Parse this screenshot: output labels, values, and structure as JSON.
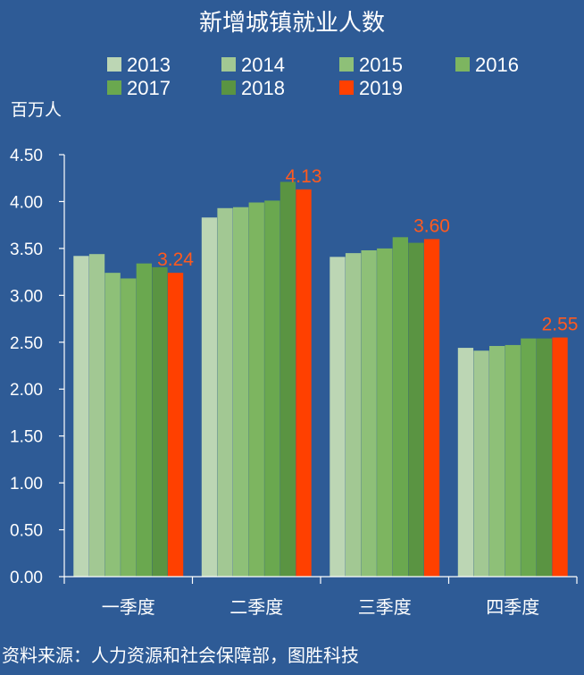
{
  "chart_data": {
    "type": "bar",
    "title": "新增城镇就业人数",
    "ylabel": "百万人",
    "ylim": [
      0,
      4.5
    ],
    "yticks": [
      "0.00",
      "0.50",
      "1.00",
      "1.50",
      "2.00",
      "2.50",
      "3.00",
      "3.50",
      "4.00",
      "4.50"
    ],
    "categories": [
      "一季度",
      "二季度",
      "三季度",
      "四季度"
    ],
    "series": [
      {
        "name": "2013",
        "color": "#bcd6b4",
        "values": [
          3.42,
          3.83,
          3.41,
          2.44
        ]
      },
      {
        "name": "2014",
        "color": "#a2c893",
        "values": [
          3.44,
          3.93,
          3.45,
          2.41
        ]
      },
      {
        "name": "2015",
        "color": "#8ec078",
        "values": [
          3.24,
          3.94,
          3.48,
          2.46
        ]
      },
      {
        "name": "2016",
        "color": "#7db560",
        "values": [
          3.18,
          3.99,
          3.5,
          2.47
        ]
      },
      {
        "name": "2017",
        "color": "#6aa84f",
        "values": [
          3.34,
          4.01,
          3.62,
          2.54
        ]
      },
      {
        "name": "2018",
        "color": "#5a9442",
        "values": [
          3.3,
          4.21,
          3.56,
          2.54
        ]
      },
      {
        "name": "2019",
        "color": "#ff4000",
        "values": [
          3.24,
          4.13,
          3.6,
          2.55
        ]
      }
    ],
    "data_labels": [
      "3.24",
      "4.13",
      "3.60",
      "2.55"
    ],
    "legend": "top",
    "grid": false,
    "source": "资料来源：人力资源和社会保障部，图胜科技"
  }
}
